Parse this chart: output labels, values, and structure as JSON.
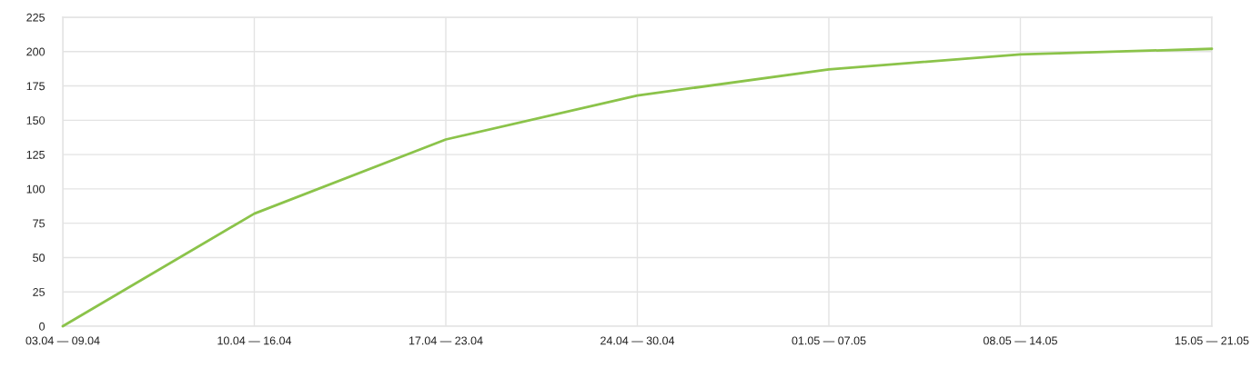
{
  "chart_data": {
    "type": "line",
    "categories": [
      "03.04 — 09.04",
      "10.04 — 16.04",
      "17.04 — 23.04",
      "24.04 — 30.04",
      "01.05 — 07.05",
      "08.05 — 14.05",
      "15.05 — 21.05"
    ],
    "series": [
      {
        "color": "#8bc34a",
        "values": [
          0,
          82,
          136,
          168,
          187,
          198,
          202
        ]
      }
    ],
    "ylim": [
      0,
      225
    ],
    "yticks": [
      0,
      25,
      50,
      75,
      100,
      125,
      150,
      175,
      200,
      225
    ],
    "grid": true,
    "marker": "none",
    "line_style": "solid"
  }
}
